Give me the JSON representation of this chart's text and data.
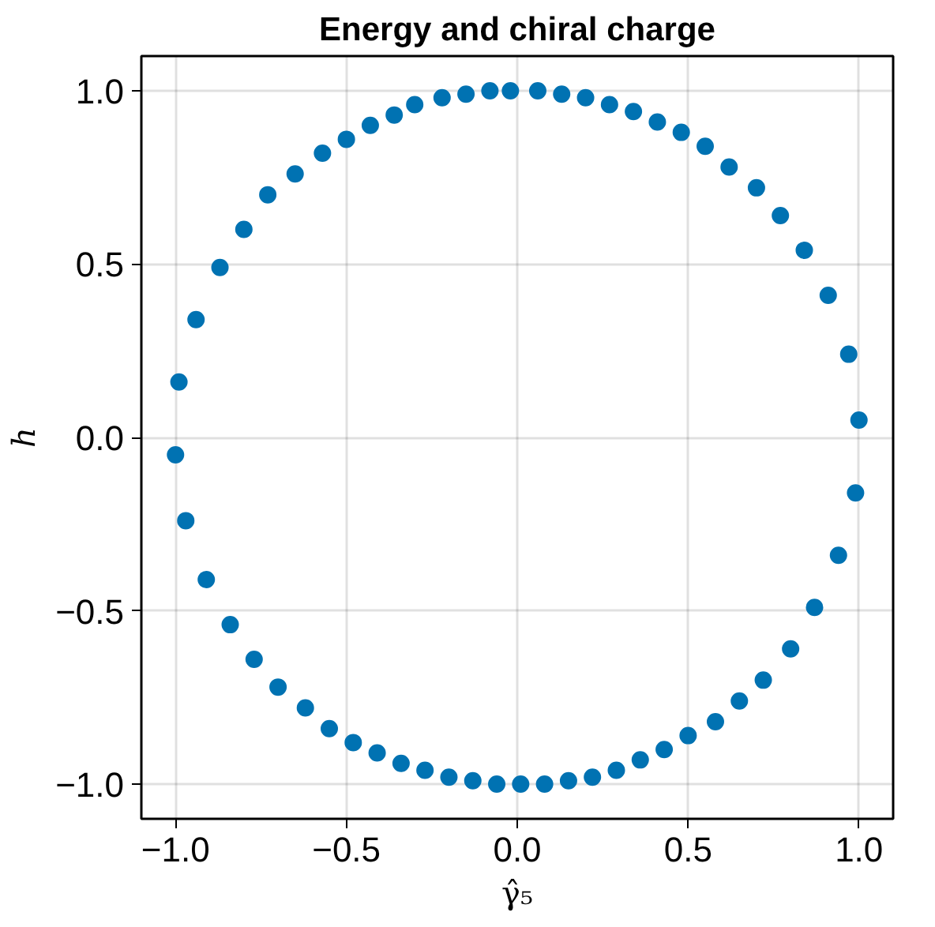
{
  "chart_data": {
    "type": "scatter",
    "title": "Energy and chiral charge",
    "xlabel": "γ̂₅",
    "ylabel": "h",
    "xlim": [
      -1.1,
      1.1
    ],
    "ylim": [
      -1.1,
      1.1
    ],
    "xticks": [
      {
        "value": -1.0,
        "label": "−1.0"
      },
      {
        "value": -0.5,
        "label": "−0.5"
      },
      {
        "value": 0,
        "label": "0.0"
      },
      {
        "value": 0.5,
        "label": "0.5"
      },
      {
        "value": 1.0,
        "label": "1.0"
      }
    ],
    "yticks": [
      {
        "value": -1.0,
        "label": "−1.0"
      },
      {
        "value": -0.5,
        "label": "−0.5"
      },
      {
        "value": 0,
        "label": "0.0"
      },
      {
        "value": 0.5,
        "label": "0.5"
      },
      {
        "value": 1.0,
        "label": "1.0"
      }
    ],
    "grid": true,
    "marker": "circle",
    "series": [
      {
        "color": "#0072b2",
        "x": [
          -0.02,
          0.06,
          0.13,
          0.2,
          0.27,
          0.34,
          0.41,
          0.48,
          0.55,
          0.62,
          0.7,
          0.77,
          0.84,
          0.91,
          0.97,
          1.0,
          0.99,
          0.94,
          0.87,
          0.8,
          0.72,
          0.65,
          0.58,
          0.5,
          0.43,
          0.36,
          0.29,
          0.22,
          0.15,
          0.08,
          0.01,
          -0.06,
          -0.13,
          -0.2,
          -0.27,
          -0.34,
          -0.41,
          -0.48,
          -0.55,
          -0.62,
          -0.7,
          -0.77,
          -0.84,
          -0.91,
          -0.97,
          -1.0,
          -0.99,
          -0.94,
          -0.87,
          -0.8,
          -0.73,
          -0.65,
          -0.57,
          -0.5,
          -0.43,
          -0.36,
          -0.3,
          -0.22,
          -0.15,
          -0.08
        ],
        "values": [
          1.0,
          1.0,
          0.99,
          0.98,
          0.96,
          0.94,
          0.91,
          0.88,
          0.84,
          0.78,
          0.72,
          0.64,
          0.54,
          0.41,
          0.24,
          0.05,
          -0.16,
          -0.34,
          -0.49,
          -0.61,
          -0.7,
          -0.76,
          -0.82,
          -0.86,
          -0.9,
          -0.93,
          -0.96,
          -0.98,
          -0.99,
          -1.0,
          -1.0,
          -1.0,
          -0.99,
          -0.98,
          -0.96,
          -0.94,
          -0.91,
          -0.88,
          -0.84,
          -0.78,
          -0.72,
          -0.64,
          -0.54,
          -0.41,
          -0.24,
          -0.05,
          0.16,
          0.34,
          0.49,
          0.6,
          0.7,
          0.76,
          0.82,
          0.86,
          0.9,
          0.93,
          0.96,
          0.98,
          0.99,
          1.0
        ]
      }
    ]
  }
}
